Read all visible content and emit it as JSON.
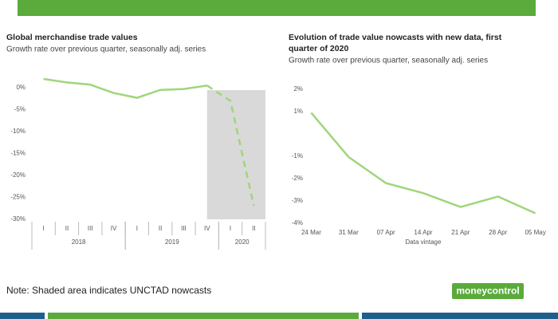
{
  "chart_data": [
    {
      "type": "line",
      "title": "Global merchandise trade values",
      "subtitle": "Growth rate over previous quarter, seasonally adj. series",
      "categories": [
        "I",
        "II",
        "III",
        "IV",
        "I",
        "II",
        "III",
        "IV",
        "I",
        "II"
      ],
      "groups": [
        "2018",
        "2019",
        "2020"
      ],
      "group_sizes": [
        4,
        4,
        2
      ],
      "series": [
        {
          "color": "#9fd67a",
          "values": [
            2.0,
            1.2,
            0.7,
            -1.2,
            -2.3,
            -0.5,
            -0.3,
            0.5,
            null,
            null
          ]
        },
        {
          "color": "#9fd67a",
          "dashed": true,
          "shaded": true,
          "values": [
            null,
            null,
            null,
            null,
            null,
            null,
            null,
            0.5,
            -3.0,
            -26.9
          ]
        }
      ],
      "ylim": [
        -30,
        2
      ],
      "yticks": [
        {
          "value": 0,
          "label": "0%"
        },
        {
          "value": -5,
          "label": "-5%"
        },
        {
          "value": -10,
          "label": "-10%"
        },
        {
          "value": -15,
          "label": "-15%"
        },
        {
          "value": -20,
          "label": "-20%"
        },
        {
          "value": -25,
          "label": "-25%"
        },
        {
          "value": -30,
          "label": "-30%"
        }
      ]
    },
    {
      "type": "line",
      "title": [
        "Evolution of trade value nowcasts with new data, first",
        "quarter of 2020"
      ],
      "subtitle": "Growth rate over previous quarter, seasonally adj. series",
      "xlabel": "Data vintage",
      "categories": [
        "24 Mar",
        "31 Mar",
        "07 Apr",
        "14 Apr",
        "21 Apr",
        "28 Apr",
        "05 May"
      ],
      "series": [
        {
          "color": "#9fd67a",
          "values": [
            0.95,
            -1.03,
            -2.2,
            -2.65,
            -3.27,
            -2.8,
            -3.55
          ]
        }
      ],
      "ylim": [
        -4,
        2
      ],
      "yticks": [
        {
          "value": 2,
          "label": "2%"
        },
        {
          "value": 1,
          "label": "1%"
        },
        {
          "value": -1,
          "label": "-1%"
        },
        {
          "value": -2,
          "label": "-2%"
        },
        {
          "value": -3,
          "label": "-3%"
        },
        {
          "value": -4,
          "label": "-4%"
        }
      ]
    }
  ],
  "note": "Note: Shaded area indicates UNCTAD nowcasts",
  "logo": "moneycontrol"
}
